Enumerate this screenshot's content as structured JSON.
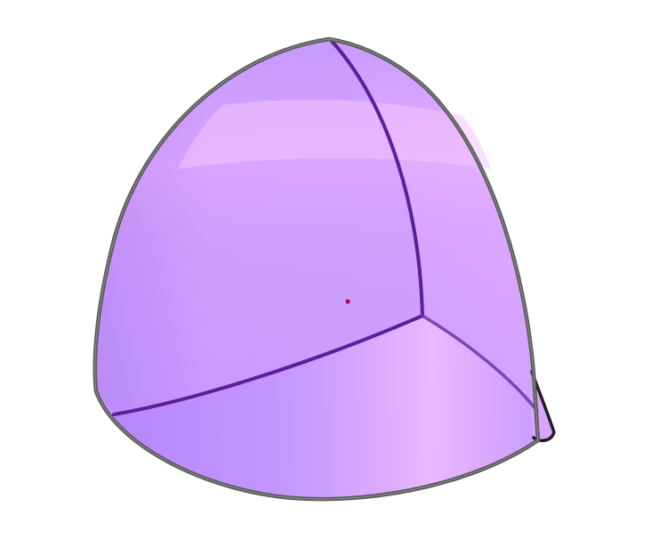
{
  "figure": {
    "colors": {
      "background": "#ffffff",
      "face_light": "#f0b8ff",
      "face_mid": "#cc99ff",
      "face_dark": "#aa7ff0",
      "outline": "#5a5a5a",
      "inner_edge": "#5b1f99",
      "center_point": "#b0005a"
    }
  }
}
